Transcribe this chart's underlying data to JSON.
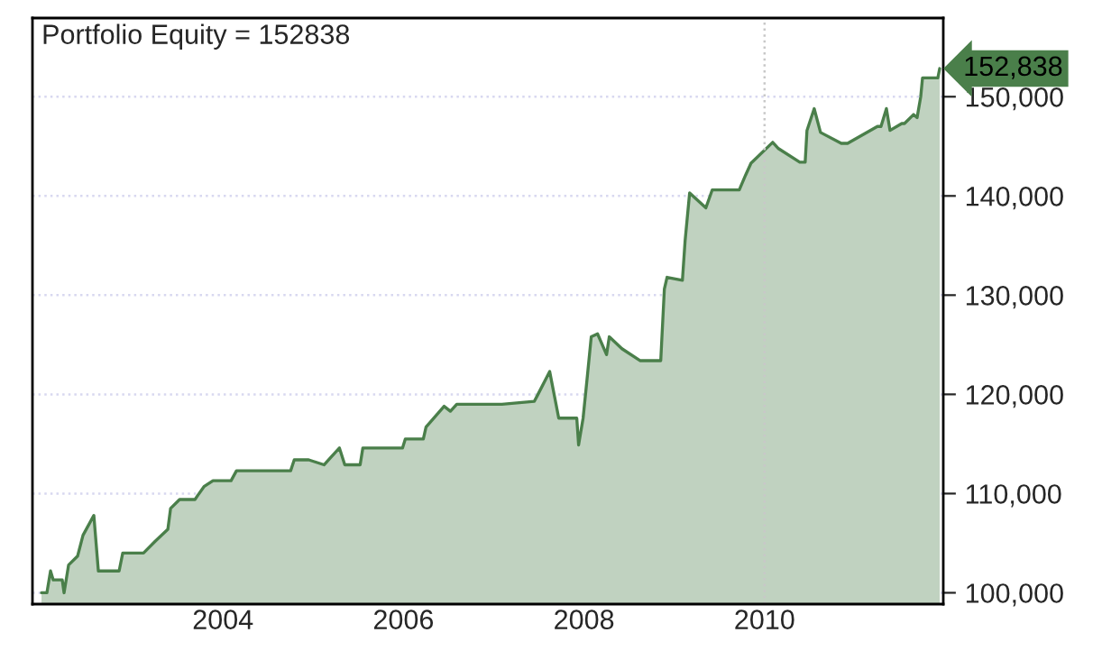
{
  "chart_data": {
    "type": "area",
    "title": "Portfolio Equity = 152838",
    "x": [
      2001.99,
      2002.05,
      2002.09,
      2002.12,
      2002.22,
      2002.24,
      2002.29,
      2002.39,
      2002.45,
      2002.57,
      2002.62,
      2002.85,
      2002.89,
      2003.12,
      2003.25,
      2003.39,
      2003.42,
      2003.52,
      2003.69,
      2003.72,
      2003.79,
      2003.89,
      2004.09,
      2004.15,
      2004.75,
      2004.79,
      2004.95,
      2005.12,
      2005.29,
      2005.35,
      2005.52,
      2005.55,
      2005.99,
      2006.02,
      2006.22,
      2006.25,
      2006.45,
      2006.52,
      2006.59,
      2007.05,
      2007.09,
      2007.45,
      2007.49,
      2007.62,
      2007.72,
      2007.92,
      2007.94,
      2007.99,
      2008.04,
      2008.08,
      2008.15,
      2008.25,
      2008.28,
      2008.42,
      2008.62,
      2008.85,
      2008.89,
      2008.92,
      2009.09,
      2009.12,
      2009.17,
      2009.35,
      2009.42,
      2009.72,
      2009.79,
      2009.85,
      2010.09,
      2010.15,
      2010.39,
      2010.45,
      2010.47,
      2010.55,
      2010.62,
      2010.85,
      2010.92,
      2011.25,
      2011.29,
      2011.35,
      2011.39,
      2011.52,
      2011.55,
      2011.65,
      2011.69,
      2011.73,
      2011.75,
      2011.92,
      2011.94
    ],
    "series": [
      {
        "color": "#4a7f4a",
        "values": [
          100000,
          100000,
          102200,
          101300,
          101300,
          100000,
          102800,
          103700,
          105800,
          107800,
          102200,
          102200,
          104000,
          104000,
          105200,
          106400,
          108500,
          109400,
          109400,
          109800,
          110700,
          111300,
          111300,
          112300,
          112300,
          113400,
          113400,
          112900,
          114600,
          112900,
          112900,
          114600,
          114600,
          115500,
          115500,
          116700,
          118800,
          118300,
          119000,
          119000,
          119000,
          119300,
          120000,
          122300,
          117600,
          117600,
          114900,
          117600,
          122100,
          125800,
          126100,
          124000,
          125800,
          124600,
          123400,
          123400,
          130600,
          131800,
          131500,
          135500,
          140300,
          138800,
          140600,
          140600,
          142100,
          143300,
          145400,
          144800,
          143400,
          143400,
          146600,
          148800,
          146400,
          145300,
          145300,
          147000,
          147000,
          148800,
          146600,
          147300,
          147300,
          148200,
          147900,
          150000,
          151900,
          151900,
          152838
        ]
      }
    ],
    "xlim": [
      2001.89,
      2011.98
    ],
    "ylim": [
      98860,
      157930
    ],
    "xticks": [
      2004,
      2006,
      2008,
      2010
    ],
    "yticks": [
      {
        "value": 100000,
        "label": "100,000"
      },
      {
        "value": 110000,
        "label": "110,000"
      },
      {
        "value": 120000,
        "label": "120,000"
      },
      {
        "value": 130000,
        "label": "130,000"
      },
      {
        "value": 140000,
        "label": "140,000"
      },
      {
        "value": 150000,
        "label": "150,000"
      }
    ],
    "grid": "y",
    "ref_lines": [
      {
        "axis": "x",
        "value": 2010,
        "color": "#c8c8c8",
        "line_style": "dotted"
      }
    ],
    "annotations": [
      "152,838"
    ]
  }
}
